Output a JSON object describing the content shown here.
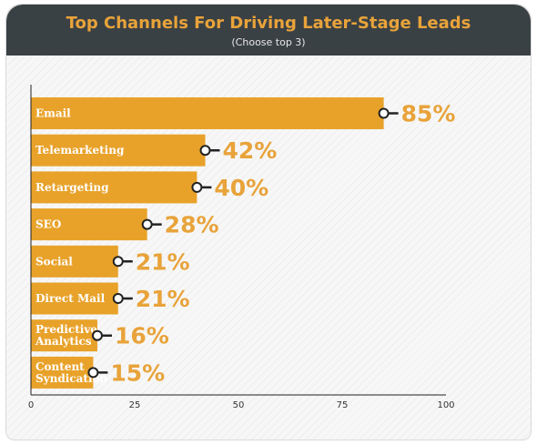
{
  "chart_data": {
    "type": "bar",
    "orientation": "horizontal",
    "title": "Top Channels For Driving Later-Stage Leads",
    "subtitle": "(Choose top 3)",
    "categories": [
      "Email",
      "Telemarketing",
      "Retargeting",
      "SEO",
      "Social",
      "Direct Mail",
      "Predictive Analytics",
      "Content Syndication"
    ],
    "values": [
      85,
      42,
      40,
      28,
      21,
      21,
      16,
      15
    ],
    "value_labels": [
      "85%",
      "42%",
      "40%",
      "28%",
      "21%",
      "21%",
      "16%",
      "15%"
    ],
    "xlim": [
      0,
      100
    ],
    "xticks": [
      0,
      25,
      50,
      75,
      100
    ],
    "grid": false,
    "colors": {
      "bar": "#e8a22a",
      "value_text": "#e8a33a",
      "header_bg": "#3a4145",
      "title": "#e8a33a"
    }
  }
}
